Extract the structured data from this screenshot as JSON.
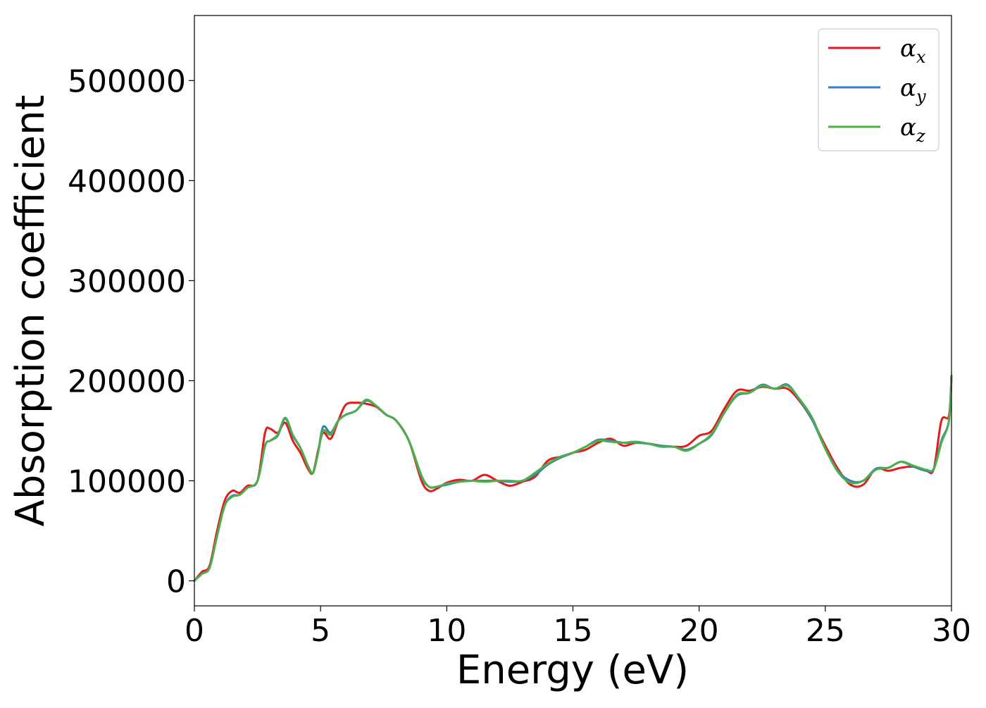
{
  "chart_data": {
    "type": "line",
    "xlabel": "Energy (eV)",
    "ylabel": "Absorption coefficient",
    "xlim": [
      0,
      30
    ],
    "ylim": [
      -25000,
      565000
    ],
    "xticks": [
      0,
      5,
      10,
      15,
      20,
      25,
      30
    ],
    "xtick_labels": [
      "0",
      "5",
      "10",
      "15",
      "20",
      "25",
      "30"
    ],
    "yticks": [
      0,
      100000,
      200000,
      300000,
      400000,
      500000
    ],
    "ytick_labels": [
      "0",
      "100000",
      "200000",
      "300000",
      "400000",
      "500000"
    ],
    "grid": false,
    "legend": {
      "position": "top-right",
      "entries": [
        {
          "symbol": "α",
          "sub": "x",
          "color": "#e41a1c"
        },
        {
          "symbol": "α",
          "sub": "y",
          "color": "#377eb8"
        },
        {
          "symbol": "α",
          "sub": "z",
          "color": "#4daf4a"
        }
      ]
    },
    "x": [
      0,
      0.3,
      0.6,
      0.9,
      1.2,
      1.5,
      1.8,
      2.1,
      2.5,
      2.8,
      3.0,
      3.3,
      3.6,
      3.9,
      4.2,
      4.5,
      4.7,
      4.9,
      5.1,
      5.4,
      5.7,
      6.0,
      6.4,
      6.8,
      7.2,
      7.6,
      8.0,
      8.5,
      9.0,
      9.3,
      9.6,
      10.0,
      10.5,
      11.0,
      11.5,
      12.0,
      12.5,
      13.0,
      13.5,
      14.0,
      14.5,
      15.0,
      15.5,
      16.0,
      16.5,
      17.0,
      17.5,
      18.0,
      18.5,
      19.0,
      19.5,
      20.0,
      20.5,
      21.0,
      21.5,
      22.0,
      22.5,
      23.0,
      23.5,
      24.0,
      24.5,
      25.0,
      25.5,
      26.0,
      26.5,
      27.0,
      27.5,
      28.0,
      28.5,
      29.0,
      29.3,
      29.6,
      29.9,
      30.0
    ],
    "series": [
      {
        "color": "#e41a1c",
        "values": [
          0,
          9000,
          15000,
          50000,
          80000,
          90000,
          88000,
          95000,
          100000,
          148000,
          152000,
          148000,
          158000,
          140000,
          128000,
          112000,
          108000,
          130000,
          148000,
          142000,
          160000,
          176000,
          178000,
          177000,
          174000,
          166000,
          160000,
          140000,
          100000,
          90000,
          92000,
          98000,
          101000,
          100000,
          106000,
          100000,
          95000,
          99000,
          104000,
          120000,
          124000,
          128000,
          131000,
          138000,
          142000,
          135000,
          138000,
          137000,
          135000,
          134000,
          135000,
          145000,
          150000,
          172000,
          190000,
          190000,
          194000,
          192000,
          192000,
          179000,
          160000,
          135000,
          112000,
          96000,
          96000,
          112000,
          110000,
          113000,
          114000,
          110000,
          112000,
          160000,
          165000,
          205000
        ]
      },
      {
        "color": "#377eb8",
        "values": [
          0,
          7000,
          13000,
          45000,
          75000,
          85000,
          86000,
          93000,
          100000,
          135000,
          140000,
          145000,
          162000,
          145000,
          133000,
          115000,
          108000,
          128000,
          154000,
          148000,
          160000,
          166000,
          170000,
          180000,
          175000,
          166000,
          160000,
          140000,
          105000,
          94000,
          94000,
          96000,
          99000,
          100000,
          100000,
          100000,
          99000,
          100000,
          106000,
          116000,
          123000,
          128000,
          134000,
          141000,
          140000,
          138000,
          138000,
          137000,
          135000,
          134000,
          131000,
          137000,
          146000,
          168000,
          185000,
          188000,
          196000,
          192000,
          196000,
          180000,
          160000,
          132000,
          110000,
          100000,
          100000,
          112000,
          113000,
          119000,
          114000,
          110000,
          112000,
          140000,
          160000,
          205000
        ]
      },
      {
        "color": "#4daf4a",
        "values": [
          0,
          7000,
          13000,
          45000,
          75000,
          84000,
          86000,
          93000,
          100000,
          135000,
          140000,
          146000,
          163000,
          146000,
          133000,
          115000,
          108000,
          128000,
          150000,
          146000,
          160000,
          166000,
          170000,
          181000,
          175000,
          166000,
          160000,
          140000,
          104000,
          94000,
          94000,
          97000,
          99000,
          100000,
          99000,
          100000,
          100000,
          100000,
          108000,
          117000,
          124000,
          128000,
          134000,
          140000,
          139000,
          138000,
          139000,
          137000,
          134000,
          134000,
          130000,
          137000,
          147000,
          168000,
          186000,
          188000,
          195000,
          192000,
          195000,
          181000,
          162000,
          132000,
          109000,
          98000,
          100000,
          111000,
          113000,
          119000,
          115000,
          111000,
          112000,
          138000,
          160000,
          205000
        ]
      }
    ]
  }
}
